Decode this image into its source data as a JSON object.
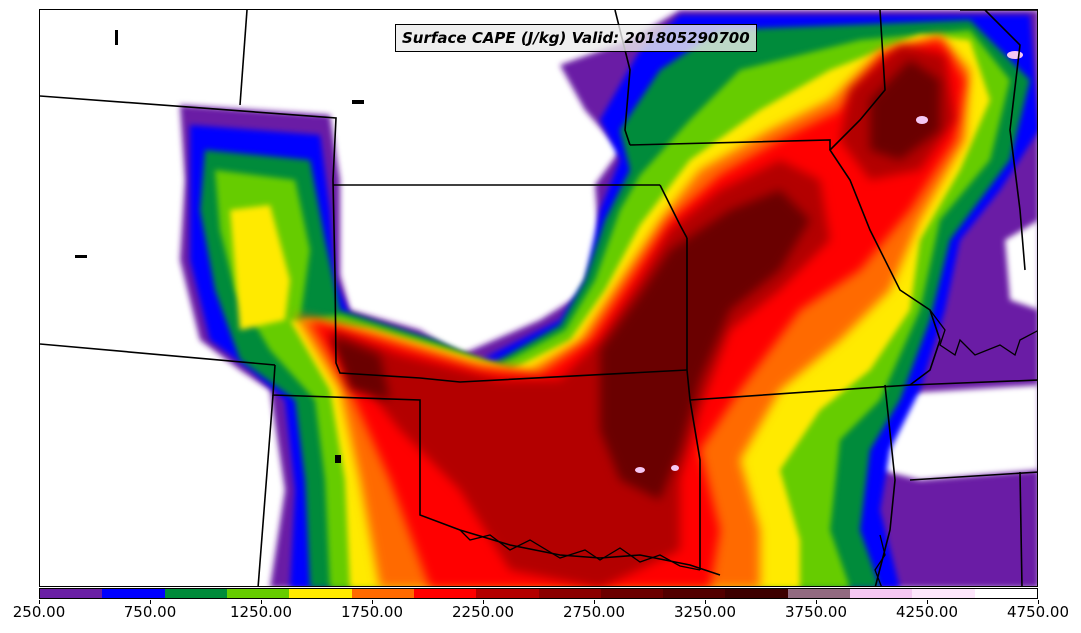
{
  "map": {
    "title": "Surface CAPE (J/kg) Valid: 201805290700"
  },
  "colorbar": {
    "colors": [
      "#6a1fa5",
      "#0000ff",
      "#008b3a",
      "#66cc00",
      "#ffea00",
      "#ff6a00",
      "#ff0000",
      "#b30000",
      "#8b0000",
      "#6b0000",
      "#520000",
      "#3c0000",
      "#926a80",
      "#f5c7f2",
      "#fde6fb",
      "#ffffff"
    ],
    "tick_labels": [
      "250.00",
      "750.00",
      "1250.00",
      "1750.00",
      "2250.00",
      "2750.00",
      "3250.00",
      "3750.00",
      "4250.00",
      "4750.00"
    ]
  }
}
